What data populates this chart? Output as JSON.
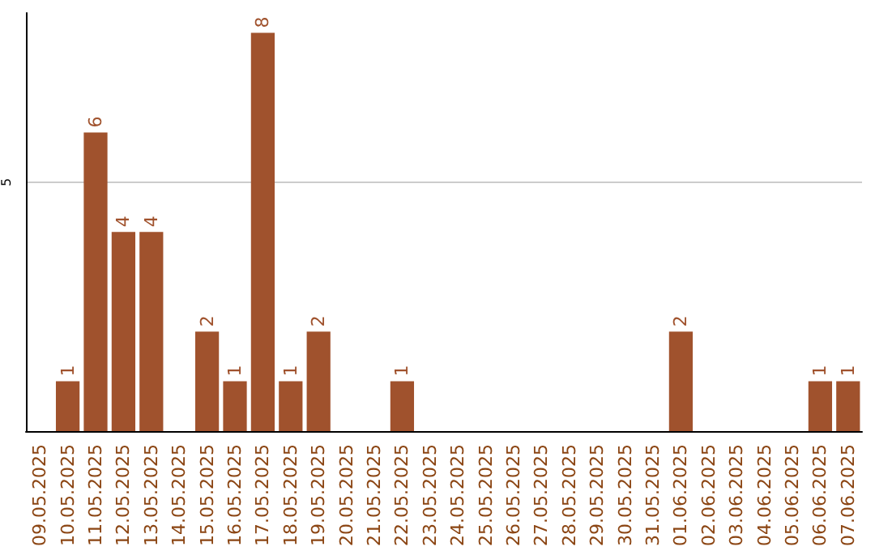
{
  "chart_data": {
    "type": "bar",
    "categories": [
      "09.05.2025",
      "10.05.2025",
      "11.05.2025",
      "12.05.2025",
      "13.05.2025",
      "14.05.2025",
      "15.05.2025",
      "16.05.2025",
      "17.05.2025",
      "18.05.2025",
      "19.05.2025",
      "20.05.2025",
      "21.05.2025",
      "22.05.2025",
      "23.05.2025",
      "24.05.2025",
      "25.05.2025",
      "26.05.2025",
      "27.05.2025",
      "28.05.2025",
      "29.05.2025",
      "30.05.2025",
      "31.05.2025",
      "01.06.2025",
      "02.06.2025",
      "03.06.2025",
      "04.06.2025",
      "05.06.2025",
      "06.06.2025",
      "07.06.2025"
    ],
    "values": [
      0,
      1,
      6,
      4,
      4,
      0,
      2,
      1,
      8,
      1,
      2,
      0,
      0,
      1,
      0,
      0,
      0,
      0,
      0,
      0,
      0,
      0,
      0,
      2,
      0,
      0,
      0,
      0,
      1,
      1
    ],
    "value_labels": [
      null,
      "1",
      "6",
      "4",
      "4",
      null,
      "2",
      "1",
      "8",
      "1",
      "2",
      null,
      null,
      "1",
      null,
      null,
      null,
      null,
      null,
      null,
      null,
      null,
      null,
      "2",
      null,
      null,
      null,
      null,
      "1",
      "1"
    ],
    "color": "#a0522d",
    "ylim": [
      0,
      8.4
    ],
    "yticks": [
      5
    ],
    "grid": "y"
  }
}
